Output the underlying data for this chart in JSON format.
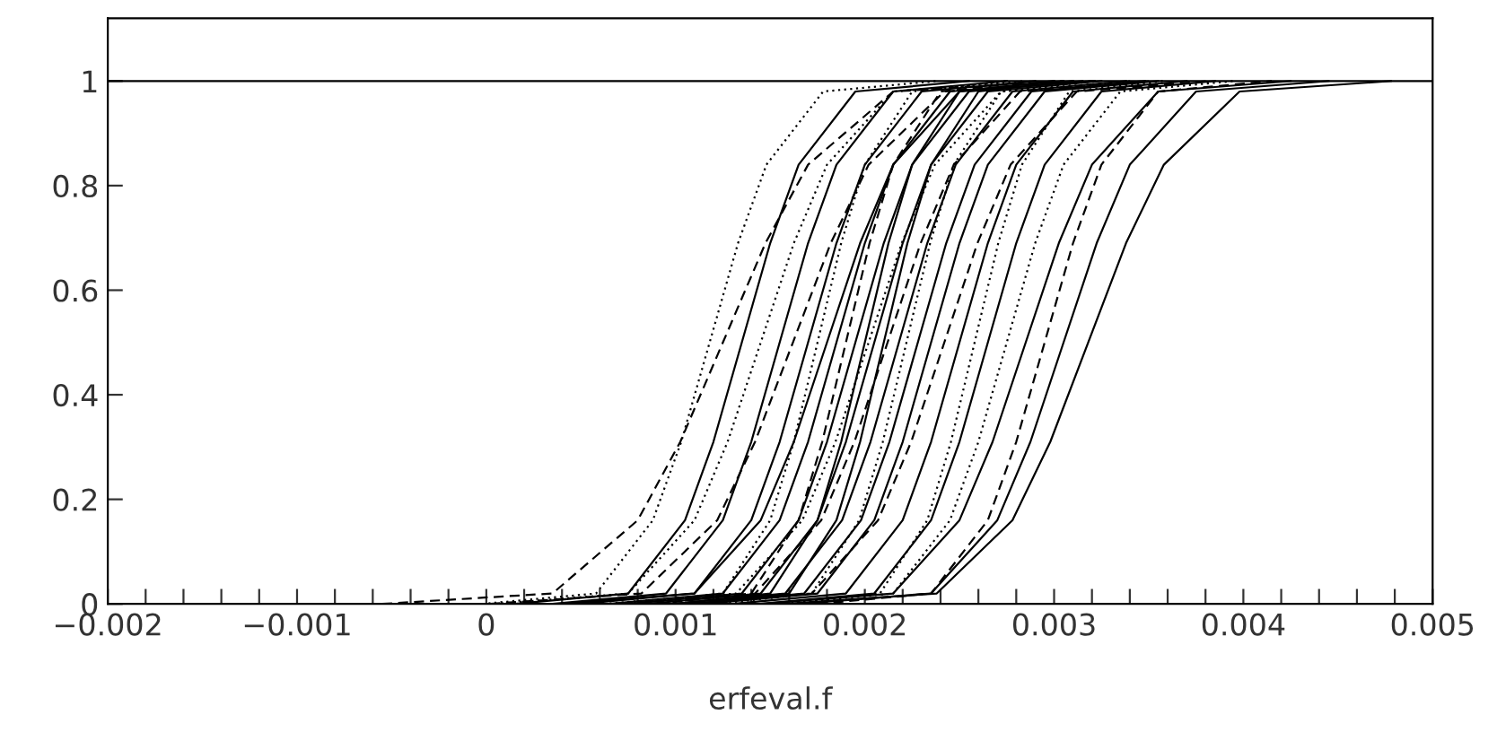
{
  "chart_data": {
    "type": "line",
    "xlabel": "erfeval.f",
    "xlim": [
      -0.002,
      0.005
    ],
    "ylim": [
      0,
      1.12
    ],
    "xticks": [
      {
        "value": -0.002,
        "label": "−0.002"
      },
      {
        "value": -0.0018,
        "label": null
      },
      {
        "value": -0.0016,
        "label": null
      },
      {
        "value": -0.0014,
        "label": null
      },
      {
        "value": -0.0012,
        "label": null
      },
      {
        "value": -0.001,
        "label": "−0.001"
      },
      {
        "value": -0.0008,
        "label": null
      },
      {
        "value": -0.0006,
        "label": null
      },
      {
        "value": -0.0004,
        "label": null
      },
      {
        "value": -0.0002,
        "label": null
      },
      0,
      {
        "value": 0.0002,
        "label": null
      },
      {
        "value": 0.0004,
        "label": null
      },
      {
        "value": 0.0006,
        "label": null
      },
      {
        "value": 0.0008,
        "label": null
      },
      0.001,
      {
        "value": 0.0012,
        "label": null
      },
      {
        "value": 0.0014,
        "label": null
      },
      {
        "value": 0.0016,
        "label": null
      },
      {
        "value": 0.0018,
        "label": null
      },
      0.002,
      {
        "value": 0.0022,
        "label": null
      },
      {
        "value": 0.0024,
        "label": null
      },
      {
        "value": 0.0026,
        "label": null
      },
      {
        "value": 0.0028,
        "label": null
      },
      0.003,
      {
        "value": 0.0032,
        "label": null
      },
      {
        "value": 0.0034,
        "label": null
      },
      {
        "value": 0.0036,
        "label": null
      },
      {
        "value": 0.0038,
        "label": null
      },
      0.004,
      {
        "value": 0.0042,
        "label": null
      },
      {
        "value": 0.0044,
        "label": null
      },
      {
        "value": 0.0046,
        "label": null
      },
      {
        "value": 0.0048,
        "label": null
      },
      0.005
    ],
    "yticks": [
      0,
      0.2,
      0.4,
      0.6,
      0.8,
      1
    ],
    "grid": false,
    "legend": false,
    "marker": "none",
    "series": [
      {
        "color": "#000000",
        "line_style": "solid",
        "x": [
          -0.002,
          0.005
        ],
        "values": [
          1,
          1
        ]
      },
      {
        "color": "#000000",
        "line_style": "dotted",
        "x": [
          -2e-05,
          0.00058,
          0.00088,
          0.00103,
          0.00118,
          0.00133,
          0.00148,
          0.00178,
          0.00238
        ],
        "values": [
          0,
          0.02,
          0.16,
          0.31,
          0.5,
          0.69,
          0.84,
          0.98,
          1
        ]
      },
      {
        "color": "#000000",
        "line_style": "dashed",
        "x": [
          -0.00055,
          0.00035,
          0.0008,
          0.001025,
          0.00125,
          0.001475,
          0.0017,
          0.00215,
          0.00305
        ],
        "values": [
          0,
          0.02,
          0.16,
          0.31,
          0.5,
          0.69,
          0.84,
          0.98,
          1
        ]
      },
      {
        "color": "#000000",
        "line_style": "solid",
        "x": [
          0.00015,
          0.00075,
          0.00105,
          0.0012,
          0.00135,
          0.0015,
          0.00165,
          0.00195,
          0.00255
        ],
        "values": [
          0,
          0.02,
          0.16,
          0.31,
          0.5,
          0.69,
          0.84,
          0.98,
          1
        ]
      },
      {
        "color": "#000000",
        "line_style": "dotted",
        "x": [
          5e-05,
          0.00075,
          0.0011,
          0.001275,
          0.00145,
          0.001625,
          0.0018,
          0.00215,
          0.00285
        ],
        "values": [
          0,
          0.02,
          0.16,
          0.31,
          0.5,
          0.69,
          0.84,
          0.98,
          1
        ]
      },
      {
        "color": "#000000",
        "line_style": "solid",
        "x": [
          0.00035,
          0.00095,
          0.00125,
          0.0014,
          0.00155,
          0.0017,
          0.00185,
          0.00215,
          0.00275
        ],
        "values": [
          0,
          0.02,
          0.16,
          0.31,
          0.5,
          0.69,
          0.84,
          0.98,
          1
        ]
      },
      {
        "color": "#000000",
        "line_style": "dashed",
        "x": [
          2e-05,
          0.00082,
          0.00122,
          0.00142,
          0.00162,
          0.00182,
          0.00202,
          0.00242,
          0.00322
        ],
        "values": [
          0,
          0.02,
          0.16,
          0.31,
          0.5,
          0.69,
          0.84,
          0.98,
          1
        ]
      },
      {
        "color": "#000000",
        "line_style": "solid",
        "x": [
          0.0005,
          0.0011,
          0.0014,
          0.00155,
          0.0017,
          0.00185,
          0.002,
          0.0023,
          0.0029
        ],
        "values": [
          0,
          0.02,
          0.16,
          0.31,
          0.5,
          0.69,
          0.84,
          0.98,
          1
        ]
      },
      {
        "color": "#000000",
        "line_style": "dotted",
        "x": [
          0.00075,
          0.00125,
          0.0015,
          0.001625,
          0.00175,
          0.001875,
          0.002,
          0.00225,
          0.00275
        ],
        "values": [
          0,
          0.02,
          0.16,
          0.31,
          0.5,
          0.69,
          0.84,
          0.98,
          1
        ]
      },
      {
        "color": "#000000",
        "line_style": "solid",
        "x": [
          0.0004,
          0.0011,
          0.00145,
          0.001625,
          0.0018,
          0.001975,
          0.00215,
          0.0025,
          0.0032
        ],
        "values": [
          0,
          0.02,
          0.16,
          0.31,
          0.5,
          0.69,
          0.84,
          0.98,
          1
        ]
      },
      {
        "color": "#000000",
        "line_style": "solid",
        "x": [
          0.00065,
          0.00125,
          0.00155,
          0.0017,
          0.00185,
          0.002,
          0.00215,
          0.00245,
          0.00305
        ],
        "values": [
          0,
          0.02,
          0.16,
          0.31,
          0.5,
          0.69,
          0.84,
          0.98,
          1
        ]
      },
      {
        "color": "#000000",
        "line_style": "dashed",
        "x": [
          0.0009,
          0.0014,
          0.00165,
          0.001775,
          0.0019,
          0.002025,
          0.00215,
          0.0024,
          0.0029
        ],
        "values": [
          0,
          0.02,
          0.16,
          0.31,
          0.5,
          0.69,
          0.84,
          0.98,
          1
        ]
      },
      {
        "color": "#000000",
        "line_style": "solid",
        "x": [
          0.00075,
          0.00135,
          0.00165,
          0.0018,
          0.00195,
          0.0021,
          0.00225,
          0.00255,
          0.00315
        ],
        "values": [
          0,
          0.02,
          0.16,
          0.31,
          0.5,
          0.69,
          0.84,
          0.98,
          1
        ]
      },
      {
        "color": "#000000",
        "line_style": "solid",
        "x": [
          0.001,
          0.0015,
          0.00175,
          0.001875,
          0.002,
          0.002125,
          0.00225,
          0.0025,
          0.003
        ],
        "values": [
          0,
          0.02,
          0.16,
          0.31,
          0.5,
          0.69,
          0.84,
          0.98,
          1
        ]
      },
      {
        "color": "#000000",
        "line_style": "dotted",
        "x": [
          0.00062,
          0.00132,
          0.00167,
          0.001845,
          0.00202,
          0.002195,
          0.00237,
          0.00272,
          0.00342
        ],
        "values": [
          0,
          0.02,
          0.16,
          0.31,
          0.5,
          0.69,
          0.84,
          0.98,
          1
        ]
      },
      {
        "color": "#000000",
        "line_style": "solid",
        "x": [
          0.00085,
          0.00145,
          0.00175,
          0.0019,
          0.00205,
          0.0022,
          0.00235,
          0.00265,
          0.00325
        ],
        "values": [
          0,
          0.02,
          0.16,
          0.31,
          0.5,
          0.69,
          0.84,
          0.98,
          1
        ]
      },
      {
        "color": "#000000",
        "line_style": "solid",
        "x": [
          0.0011,
          0.0016,
          0.00185,
          0.001975,
          0.0021,
          0.002225,
          0.00235,
          0.0026,
          0.0031
        ],
        "values": [
          0,
          0.02,
          0.16,
          0.31,
          0.5,
          0.69,
          0.84,
          0.98,
          1
        ]
      },
      {
        "color": "#000000",
        "line_style": "dashed",
        "x": [
          0.00072,
          0.00142,
          0.00177,
          0.001945,
          0.00212,
          0.002295,
          0.00247,
          0.00282,
          0.00352
        ],
        "values": [
          0,
          0.02,
          0.16,
          0.31,
          0.5,
          0.69,
          0.84,
          0.98,
          1
        ]
      },
      {
        "color": "#000000",
        "line_style": "solid",
        "x": [
          0.00098,
          0.00158,
          0.00188,
          0.00203,
          0.00218,
          0.00233,
          0.00248,
          0.00278,
          0.00338
        ],
        "values": [
          0,
          0.02,
          0.16,
          0.31,
          0.5,
          0.69,
          0.84,
          0.98,
          1
        ]
      },
      {
        "color": "#000000",
        "line_style": "dotted",
        "x": [
          0.00122,
          0.00172,
          0.00197,
          0.002095,
          0.00222,
          0.002345,
          0.00247,
          0.00272,
          0.00322
        ],
        "values": [
          0,
          0.02,
          0.16,
          0.31,
          0.5,
          0.69,
          0.84,
          0.98,
          1
        ]
      },
      {
        "color": "#000000",
        "line_style": "solid",
        "x": [
          0.00108,
          0.00168,
          0.00198,
          0.00213,
          0.00228,
          0.00243,
          0.00258,
          0.00288,
          0.00348
        ],
        "values": [
          0,
          0.02,
          0.16,
          0.31,
          0.5,
          0.69,
          0.84,
          0.98,
          1
        ]
      },
      {
        "color": "#000000",
        "line_style": "solid",
        "x": [
          0.00115,
          0.00175,
          0.00205,
          0.0022,
          0.00235,
          0.0025,
          0.00265,
          0.00295,
          0.00355
        ],
        "values": [
          0,
          0.02,
          0.16,
          0.31,
          0.5,
          0.69,
          0.84,
          0.98,
          1
        ]
      },
      {
        "color": "#000000",
        "line_style": "dashed",
        "x": [
          0.00102,
          0.00172,
          0.00207,
          0.002245,
          0.00242,
          0.002595,
          0.00277,
          0.00312,
          0.00382
        ],
        "values": [
          0,
          0.02,
          0.16,
          0.31,
          0.5,
          0.69,
          0.84,
          0.98,
          1
        ]
      },
      {
        "color": "#000000",
        "line_style": "solid",
        "x": [
          0.0013,
          0.0019,
          0.0022,
          0.00235,
          0.0025,
          0.00265,
          0.0028,
          0.0031,
          0.0037
        ],
        "values": [
          0,
          0.02,
          0.16,
          0.31,
          0.5,
          0.69,
          0.84,
          0.98,
          1
        ]
      },
      {
        "color": "#000000",
        "line_style": "dotted",
        "x": [
          0.00158,
          0.00208,
          0.00233,
          0.002455,
          0.00258,
          0.002705,
          0.00283,
          0.00308,
          0.00358
        ],
        "values": [
          0,
          0.02,
          0.16,
          0.31,
          0.5,
          0.69,
          0.84,
          0.98,
          1
        ]
      },
      {
        "color": "#000000",
        "line_style": "solid",
        "x": [
          0.00145,
          0.00205,
          0.00235,
          0.0025,
          0.00265,
          0.0028,
          0.00295,
          0.00325,
          0.00385
        ],
        "values": [
          0,
          0.02,
          0.16,
          0.31,
          0.5,
          0.69,
          0.84,
          0.98,
          1
        ]
      },
      {
        "color": "#000000",
        "line_style": "dotted",
        "x": [
          0.00155,
          0.00215,
          0.00245,
          0.0026,
          0.00275,
          0.0029,
          0.00305,
          0.00335,
          0.00395
        ],
        "values": [
          0,
          0.02,
          0.16,
          0.31,
          0.5,
          0.69,
          0.84,
          0.98,
          1
        ]
      },
      {
        "color": "#000000",
        "line_style": "solid",
        "x": [
          0.00145,
          0.00215,
          0.0025,
          0.002675,
          0.00285,
          0.003025,
          0.0032,
          0.00355,
          0.00425
        ],
        "values": [
          0,
          0.02,
          0.16,
          0.31,
          0.5,
          0.69,
          0.84,
          0.98,
          1
        ]
      },
      {
        "color": "#000000",
        "line_style": "dashed",
        "x": [
          0.00175,
          0.00235,
          0.00265,
          0.0028,
          0.00295,
          0.0031,
          0.00325,
          0.00355,
          0.00415
        ],
        "values": [
          0,
          0.02,
          0.16,
          0.31,
          0.5,
          0.69,
          0.84,
          0.98,
          1
        ]
      },
      {
        "color": "#000000",
        "line_style": "solid",
        "x": [
          0.00165,
          0.00235,
          0.0027,
          0.002875,
          0.00305,
          0.003225,
          0.0034,
          0.00375,
          0.00445
        ],
        "values": [
          0,
          0.02,
          0.16,
          0.31,
          0.5,
          0.69,
          0.84,
          0.98,
          1
        ]
      },
      {
        "color": "#000000",
        "line_style": "solid",
        "x": [
          0.00158,
          0.00238,
          0.00278,
          0.00298,
          0.00318,
          0.00338,
          0.00358,
          0.00398,
          0.00478
        ],
        "values": [
          0,
          0.02,
          0.16,
          0.31,
          0.5,
          0.69,
          0.84,
          0.98,
          1
        ]
      }
    ]
  }
}
